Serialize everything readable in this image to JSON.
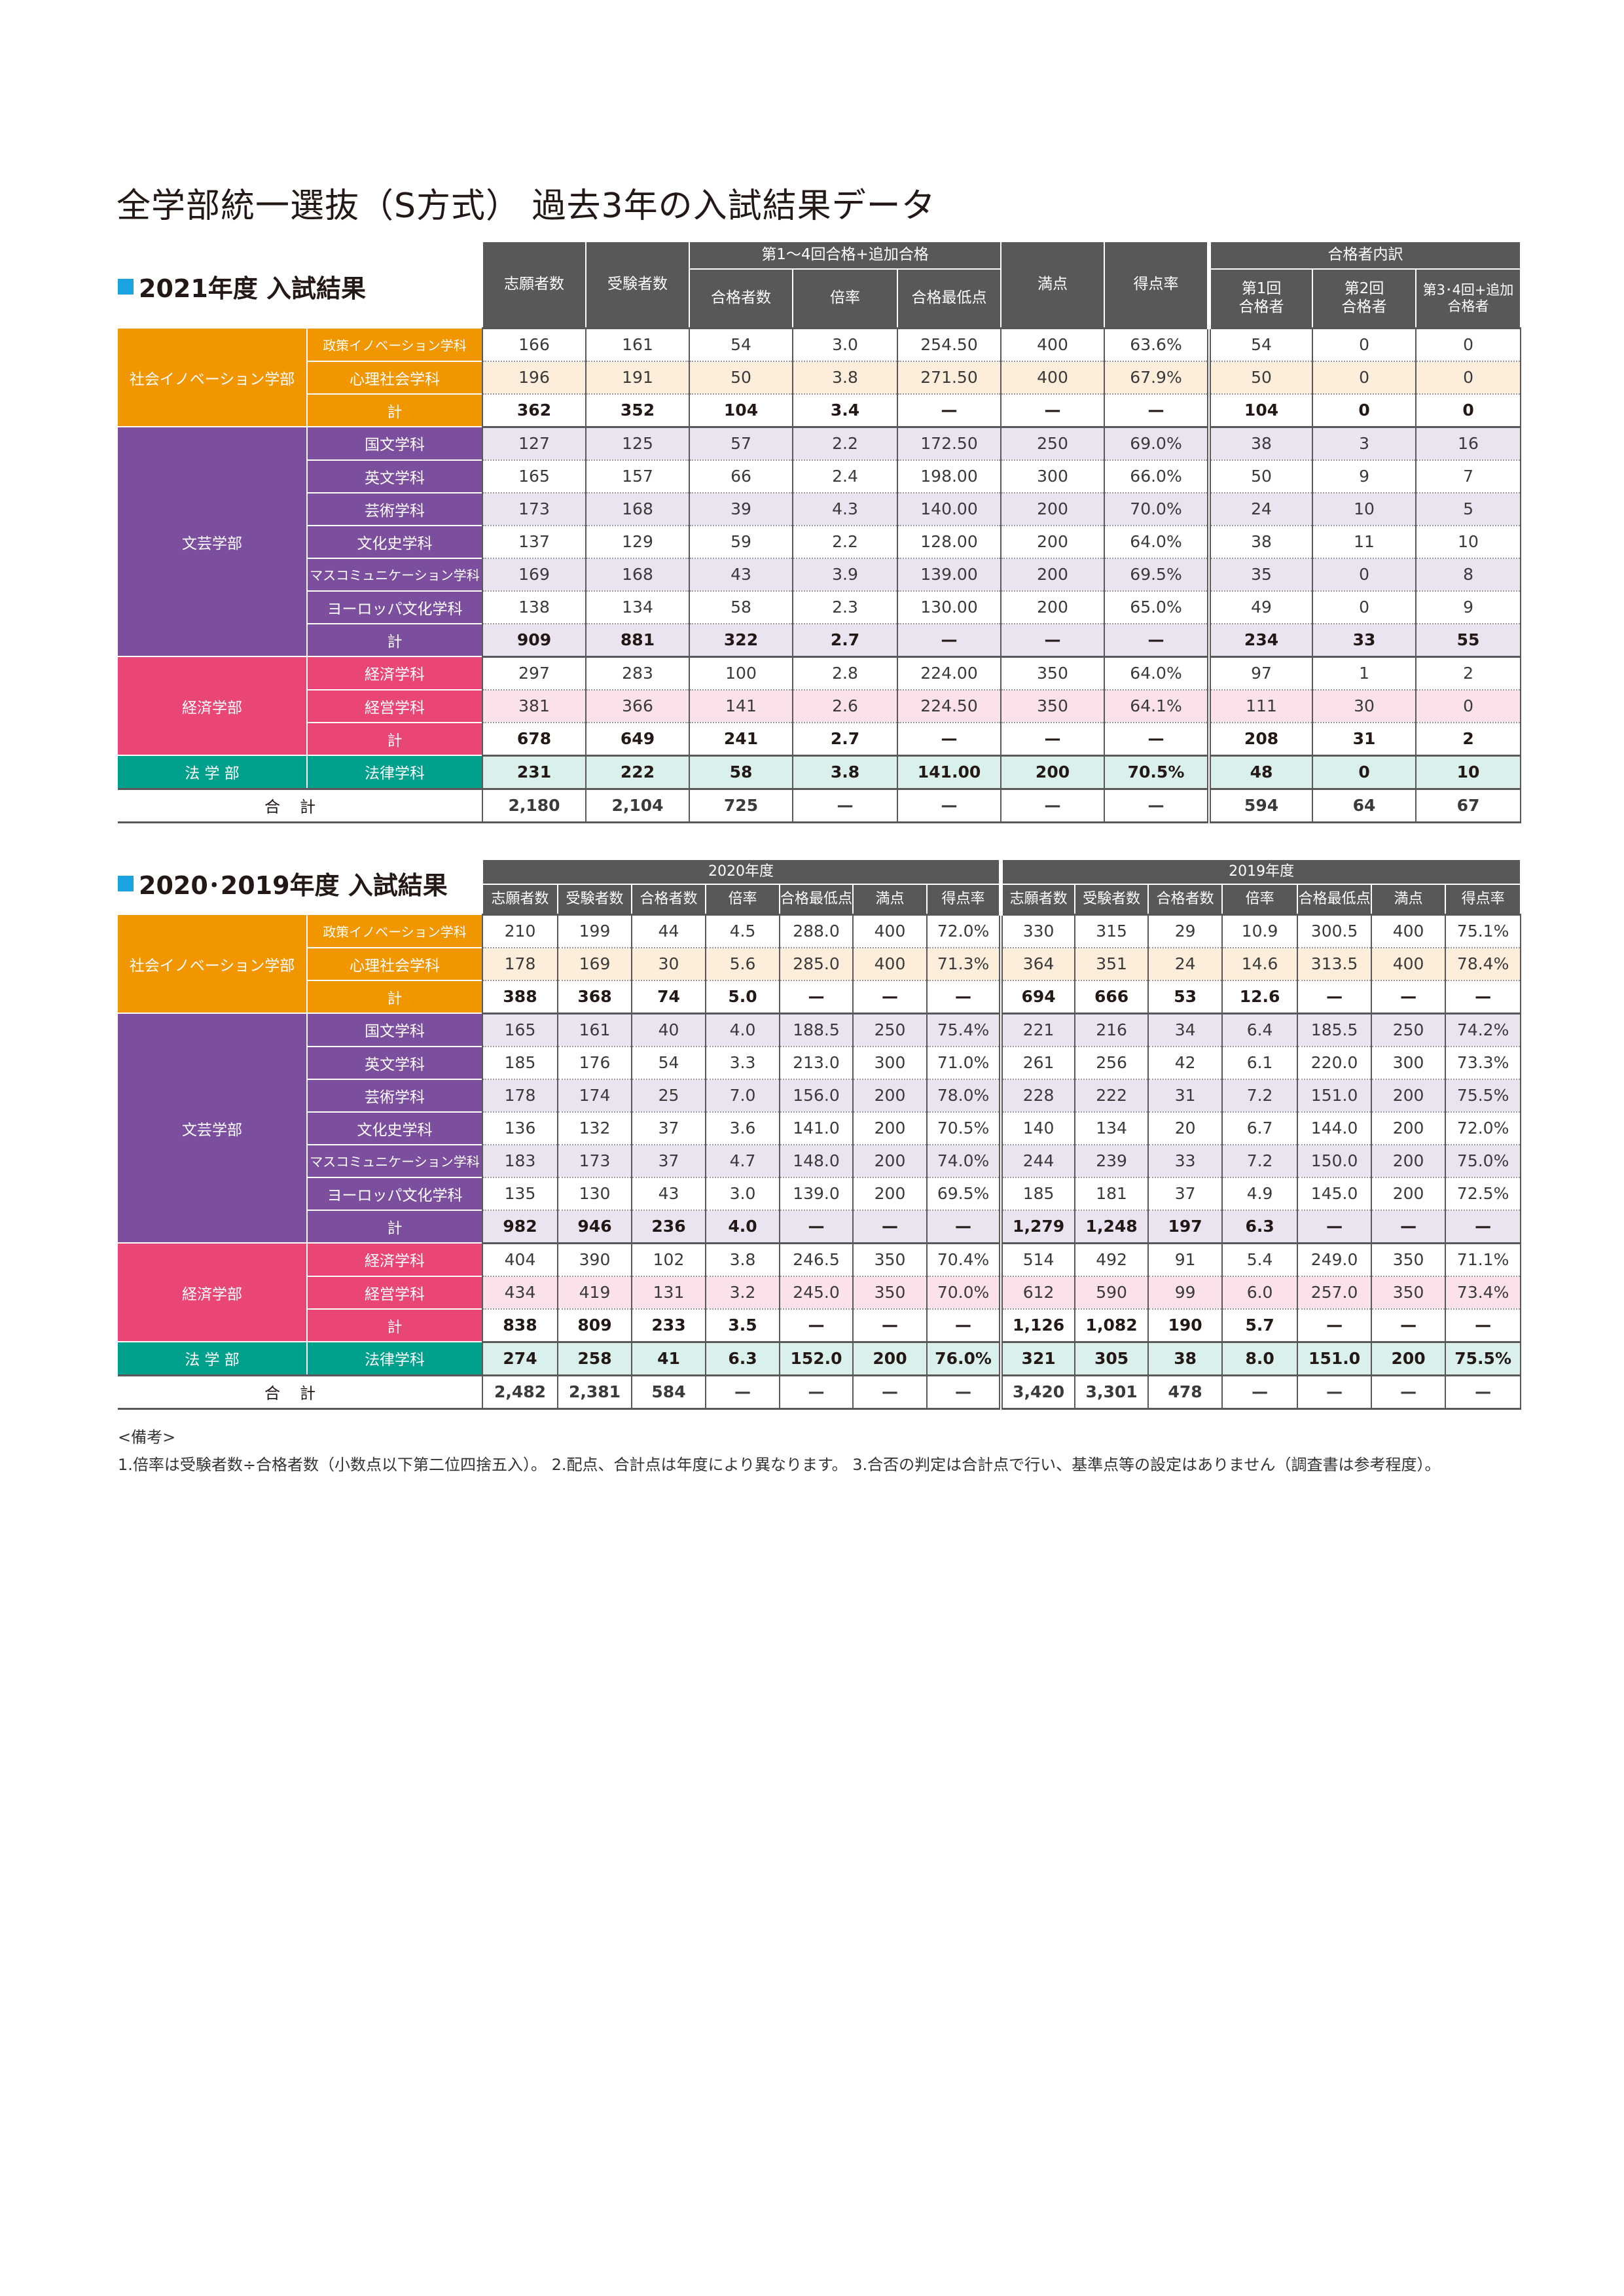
{
  "title": "全学部統一選抜（S方式） 過去3年の入試結果データ",
  "colors": {
    "header": "#595757",
    "accent": "#1aa3de"
  },
  "table1": {
    "section_title": "2021年度 入試結果",
    "headers": {
      "applicants": "志願者数",
      "examinees": "受験者数",
      "group_passed": "第1〜4回合格+追加合格",
      "passed": "合格者数",
      "ratio": "倍率",
      "min_score": "合格最低点",
      "full_score": "満点",
      "score_rate": "得点率",
      "group_breakdown": "合格者内訳",
      "round1": "第1回\n合格者",
      "round2": "第2回\n合格者",
      "round34": "第3･4回+追加\n合格者"
    },
    "faculties": [
      {
        "name": "社会イノベーション学部",
        "color": "#f29600",
        "tint": "#fdeedb",
        "rows": [
          {
            "dept": "政策イノベーション学科",
            "shaded": false,
            "values": [
              "166",
              "161",
              "54",
              "3.0",
              "254.50",
              "400",
              "63.6%",
              "54",
              "0",
              "0"
            ]
          },
          {
            "dept": "心理社会学科",
            "shaded": true,
            "values": [
              "196",
              "191",
              "50",
              "3.8",
              "271.50",
              "400",
              "67.9%",
              "50",
              "0",
              "0"
            ]
          },
          {
            "dept": "計",
            "shaded": false,
            "values": [
              "362",
              "352",
              "104",
              "3.4",
              "—",
              "—",
              "—",
              "104",
              "0",
              "0"
            ]
          }
        ]
      },
      {
        "name": "文芸学部",
        "color": "#7b4f9e",
        "tint": "#e9e4f0",
        "rows": [
          {
            "dept": "国文学科",
            "shaded": true,
            "values": [
              "127",
              "125",
              "57",
              "2.2",
              "172.50",
              "250",
              "69.0%",
              "38",
              "3",
              "16"
            ]
          },
          {
            "dept": "英文学科",
            "shaded": false,
            "values": [
              "165",
              "157",
              "66",
              "2.4",
              "198.00",
              "300",
              "66.0%",
              "50",
              "9",
              "7"
            ]
          },
          {
            "dept": "芸術学科",
            "shaded": true,
            "values": [
              "173",
              "168",
              "39",
              "4.3",
              "140.00",
              "200",
              "70.0%",
              "24",
              "10",
              "5"
            ]
          },
          {
            "dept": "文化史学科",
            "shaded": false,
            "values": [
              "137",
              "129",
              "59",
              "2.2",
              "128.00",
              "200",
              "64.0%",
              "38",
              "11",
              "10"
            ]
          },
          {
            "dept": "マスコミュニケーション学科",
            "shaded": true,
            "values": [
              "169",
              "168",
              "43",
              "3.9",
              "139.00",
              "200",
              "69.5%",
              "35",
              "0",
              "8"
            ]
          },
          {
            "dept": "ヨーロッパ文化学科",
            "shaded": false,
            "values": [
              "138",
              "134",
              "58",
              "2.3",
              "130.00",
              "200",
              "65.0%",
              "49",
              "0",
              "9"
            ]
          },
          {
            "dept": "計",
            "shaded": true,
            "values": [
              "909",
              "881",
              "322",
              "2.7",
              "—",
              "—",
              "—",
              "234",
              "33",
              "55"
            ]
          }
        ]
      },
      {
        "name": "経済学部",
        "color": "#e94675",
        "tint": "#fbe1e8",
        "rows": [
          {
            "dept": "経済学科",
            "shaded": false,
            "values": [
              "297",
              "283",
              "100",
              "2.8",
              "224.00",
              "350",
              "64.0%",
              "97",
              "1",
              "2"
            ]
          },
          {
            "dept": "経営学科",
            "shaded": true,
            "values": [
              "381",
              "366",
              "141",
              "2.6",
              "224.50",
              "350",
              "64.1%",
              "111",
              "30",
              "0"
            ]
          },
          {
            "dept": "計",
            "shaded": false,
            "values": [
              "678",
              "649",
              "241",
              "2.7",
              "—",
              "—",
              "—",
              "208",
              "31",
              "2"
            ]
          }
        ]
      },
      {
        "name": "法 学 部",
        "color": "#00a08c",
        "tint": "#d9f0ec",
        "rows": [
          {
            "dept": "法律学科",
            "shaded": true,
            "values": [
              "231",
              "222",
              "58",
              "3.8",
              "141.00",
              "200",
              "70.5%",
              "48",
              "0",
              "10"
            ]
          }
        ]
      }
    ],
    "total": {
      "label": "合計",
      "values": [
        "2,180",
        "2,104",
        "725",
        "—",
        "—",
        "—",
        "—",
        "594",
        "64",
        "67"
      ]
    }
  },
  "table2": {
    "section_title": "2020･2019年度 入試結果",
    "years": [
      "2020年度",
      "2019年度"
    ],
    "headers": [
      "志願者数",
      "受験者数",
      "合格者数",
      "倍率",
      "合格最低点",
      "満点",
      "得点率"
    ],
    "faculties": [
      {
        "name": "社会イノベーション学部",
        "color": "#f29600",
        "tint": "#fdeedb",
        "rows": [
          {
            "dept": "政策イノベーション学科",
            "shaded": false,
            "values": [
              "210",
              "199",
              "44",
              "4.5",
              "288.0",
              "400",
              "72.0%",
              "330",
              "315",
              "29",
              "10.9",
              "300.5",
              "400",
              "75.1%"
            ]
          },
          {
            "dept": "心理社会学科",
            "shaded": true,
            "values": [
              "178",
              "169",
              "30",
              "5.6",
              "285.0",
              "400",
              "71.3%",
              "364",
              "351",
              "24",
              "14.6",
              "313.5",
              "400",
              "78.4%"
            ]
          },
          {
            "dept": "計",
            "shaded": false,
            "values": [
              "388",
              "368",
              "74",
              "5.0",
              "—",
              "—",
              "—",
              "694",
              "666",
              "53",
              "12.6",
              "—",
              "—",
              "—"
            ]
          }
        ]
      },
      {
        "name": "文芸学部",
        "color": "#7b4f9e",
        "tint": "#e9e4f0",
        "rows": [
          {
            "dept": "国文学科",
            "shaded": true,
            "values": [
              "165",
              "161",
              "40",
              "4.0",
              "188.5",
              "250",
              "75.4%",
              "221",
              "216",
              "34",
              "6.4",
              "185.5",
              "250",
              "74.2%"
            ]
          },
          {
            "dept": "英文学科",
            "shaded": false,
            "values": [
              "185",
              "176",
              "54",
              "3.3",
              "213.0",
              "300",
              "71.0%",
              "261",
              "256",
              "42",
              "6.1",
              "220.0",
              "300",
              "73.3%"
            ]
          },
          {
            "dept": "芸術学科",
            "shaded": true,
            "values": [
              "178",
              "174",
              "25",
              "7.0",
              "156.0",
              "200",
              "78.0%",
              "228",
              "222",
              "31",
              "7.2",
              "151.0",
              "200",
              "75.5%"
            ]
          },
          {
            "dept": "文化史学科",
            "shaded": false,
            "values": [
              "136",
              "132",
              "37",
              "3.6",
              "141.0",
              "200",
              "70.5%",
              "140",
              "134",
              "20",
              "6.7",
              "144.0",
              "200",
              "72.0%"
            ]
          },
          {
            "dept": "マスコミュニケーション学科",
            "shaded": true,
            "values": [
              "183",
              "173",
              "37",
              "4.7",
              "148.0",
              "200",
              "74.0%",
              "244",
              "239",
              "33",
              "7.2",
              "150.0",
              "200",
              "75.0%"
            ]
          },
          {
            "dept": "ヨーロッパ文化学科",
            "shaded": false,
            "values": [
              "135",
              "130",
              "43",
              "3.0",
              "139.0",
              "200",
              "69.5%",
              "185",
              "181",
              "37",
              "4.9",
              "145.0",
              "200",
              "72.5%"
            ]
          },
          {
            "dept": "計",
            "shaded": true,
            "values": [
              "982",
              "946",
              "236",
              "4.0",
              "—",
              "—",
              "—",
              "1,279",
              "1,248",
              "197",
              "6.3",
              "—",
              "—",
              "—"
            ]
          }
        ]
      },
      {
        "name": "経済学部",
        "color": "#e94675",
        "tint": "#fbe1e8",
        "rows": [
          {
            "dept": "経済学科",
            "shaded": false,
            "values": [
              "404",
              "390",
              "102",
              "3.8",
              "246.5",
              "350",
              "70.4%",
              "514",
              "492",
              "91",
              "5.4",
              "249.0",
              "350",
              "71.1%"
            ]
          },
          {
            "dept": "経営学科",
            "shaded": true,
            "values": [
              "434",
              "419",
              "131",
              "3.2",
              "245.0",
              "350",
              "70.0%",
              "612",
              "590",
              "99",
              "6.0",
              "257.0",
              "350",
              "73.4%"
            ]
          },
          {
            "dept": "計",
            "shaded": false,
            "values": [
              "838",
              "809",
              "233",
              "3.5",
              "—",
              "—",
              "—",
              "1,126",
              "1,082",
              "190",
              "5.7",
              "—",
              "—",
              "—"
            ]
          }
        ]
      },
      {
        "name": "法 学 部",
        "color": "#00a08c",
        "tint": "#d9f0ec",
        "rows": [
          {
            "dept": "法律学科",
            "shaded": true,
            "values": [
              "274",
              "258",
              "41",
              "6.3",
              "152.0",
              "200",
              "76.0%",
              "321",
              "305",
              "38",
              "8.0",
              "151.0",
              "200",
              "75.5%"
            ]
          }
        ]
      }
    ],
    "total": {
      "label": "合計",
      "values": [
        "2,482",
        "2,381",
        "584",
        "—",
        "—",
        "—",
        "—",
        "3,420",
        "3,301",
        "478",
        "—",
        "—",
        "—",
        "—"
      ]
    }
  },
  "notes": {
    "heading": "<備考>",
    "text": "1.倍率は受験者数÷合格者数（小数点以下第二位四捨五入）。 2.配点、合計点は年度により異なります。 3.合否の判定は合計点で行い、基準点等の設定はありません（調査書は参考程度）。"
  }
}
